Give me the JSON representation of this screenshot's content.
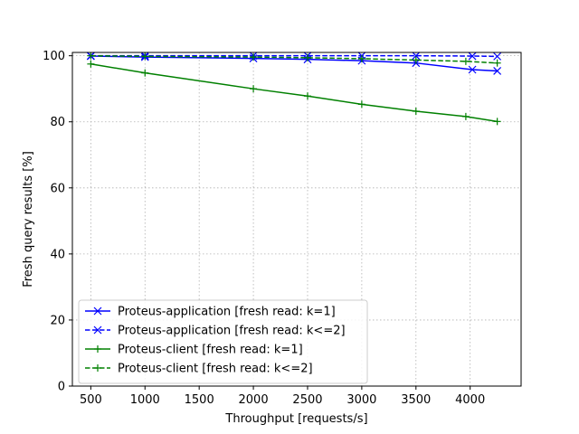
{
  "chart_data": {
    "type": "line",
    "title": "",
    "xlabel": "Throughput [requests/s]",
    "ylabel": "Fresh query results [%]",
    "xlim": [
      330,
      4470
    ],
    "ylim": [
      0,
      101
    ],
    "xticks": [
      500,
      1000,
      1500,
      2000,
      2500,
      3000,
      3500,
      4000
    ],
    "yticks": [
      0,
      20,
      40,
      60,
      80,
      100
    ],
    "grid": true,
    "legend_position": "lower-left",
    "series": [
      {
        "name": "Proteus-application [fresh read: k=1]",
        "color": "#0000ff",
        "linestyle": "solid",
        "marker": "x",
        "x": [
          500,
          1000,
          2000,
          2500,
          3000,
          3500,
          4020,
          4250
        ],
        "y": [
          99.9,
          99.6,
          99.2,
          98.9,
          98.5,
          97.8,
          95.8,
          95.4
        ]
      },
      {
        "name": "Proteus-application [fresh read: k<=2]",
        "color": "#0000ff",
        "linestyle": "dashed",
        "marker": "x",
        "x": [
          500,
          1000,
          2000,
          2500,
          3000,
          3500,
          4020,
          4250
        ],
        "y": [
          100,
          100,
          100,
          100,
          100,
          100,
          99.9,
          99.8
        ]
      },
      {
        "name": "Proteus-client [fresh read: k=1]",
        "color": "#008000",
        "linestyle": "solid",
        "marker": "+",
        "x": [
          500,
          1000,
          2000,
          2500,
          3000,
          3500,
          3960,
          4250
        ],
        "y": [
          97.5,
          94.8,
          90.0,
          87.8,
          85.3,
          83.2,
          81.6,
          80.1
        ]
      },
      {
        "name": "Proteus-client [fresh read: k<=2]",
        "color": "#008000",
        "linestyle": "dashed",
        "marker": "+",
        "x": [
          500,
          1000,
          2000,
          2500,
          3000,
          3500,
          3960,
          4250
        ],
        "y": [
          100,
          99.8,
          99.6,
          99.4,
          99.1,
          98.7,
          98.3,
          97.8
        ]
      }
    ]
  }
}
